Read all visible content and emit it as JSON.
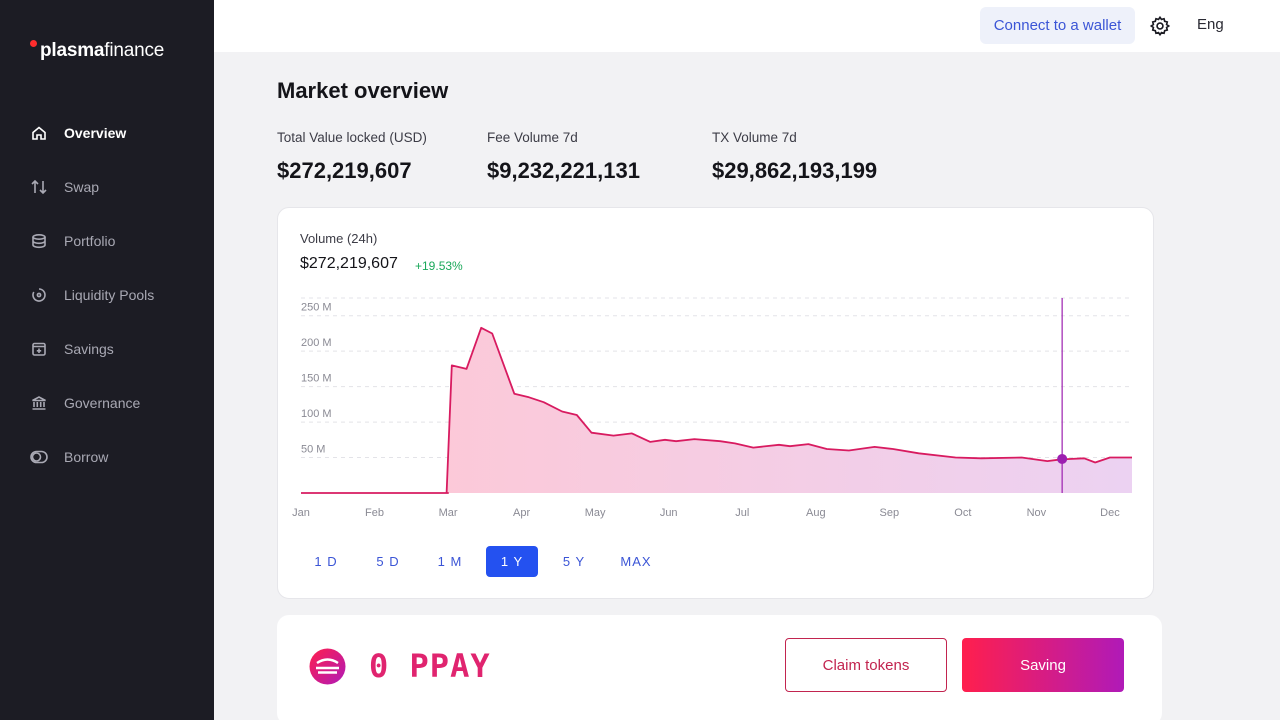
{
  "app": {
    "logo_bold": "plasma",
    "logo_light": "finance"
  },
  "sidebar": {
    "items": [
      {
        "label": "Overview",
        "icon": "home-icon",
        "active": true
      },
      {
        "label": "Swap",
        "icon": "swap-arrows-icon",
        "active": false
      },
      {
        "label": "Portfolio",
        "icon": "database-icon",
        "active": false
      },
      {
        "label": "Liquidity Pools",
        "icon": "pool-icon",
        "active": false
      },
      {
        "label": "Savings",
        "icon": "savings-box-icon",
        "active": false
      },
      {
        "label": "Governance",
        "icon": "bank-icon",
        "active": false
      },
      {
        "label": "Borrow",
        "icon": "toggle-icon",
        "active": false
      }
    ]
  },
  "header": {
    "connect_label": "Connect to a wallet",
    "settings_icon": "gear-icon",
    "language": "Eng"
  },
  "main": {
    "title": "Market overview",
    "stats": [
      {
        "label": "Total Value locked (USD)",
        "value": "$272,219,607"
      },
      {
        "label": "Fee Volume 7d",
        "value": "$9,232,221,131"
      },
      {
        "label": "TX Volume 7d",
        "value": "$29,862,193,199"
      }
    ],
    "chart_card": {
      "label": "Volume (24h)",
      "value": "$272,219,607",
      "change": "+19.53%",
      "ranges": [
        "1 D",
        "5 D",
        "1 M",
        "1 Y",
        "5 Y",
        "MAX"
      ],
      "active_range": "1 Y"
    },
    "token": {
      "amount": "0 PPAY",
      "claim_label": "Claim tokens",
      "saving_label": "Saving"
    }
  },
  "colors": {
    "accent": "#2451f0",
    "line": "#d81b60",
    "positive": "#1aa85a",
    "sidebar_bg": "#1c1c24"
  },
  "chart_data": {
    "type": "area",
    "xlabel": "",
    "ylabel": "",
    "x_ticks": [
      "Jan",
      "Feb",
      "Mar",
      "Apr",
      "May",
      "Jun",
      "Jul",
      "Aug",
      "Sep",
      "Oct",
      "Nov",
      "Dec"
    ],
    "y_ticks": [
      "250 M",
      "200 M",
      "150 M",
      "100 M",
      "50 M"
    ],
    "y_tick_values": [
      250,
      200,
      150,
      100,
      50
    ],
    "ylim": [
      0,
      275
    ],
    "xlim": [
      0,
      11.3
    ],
    "grid": true,
    "series": [
      {
        "x": [
          0,
          1,
          2,
          1.98,
          2.05,
          2.25,
          2.45,
          2.6,
          2.9,
          3.1,
          3.3,
          3.55,
          3.75,
          3.95,
          4.25,
          4.5,
          4.75,
          4.95,
          5.1,
          5.35,
          5.7,
          5.9,
          6.15,
          6.5,
          6.65,
          6.9,
          7.15,
          7.45,
          7.8,
          8.05,
          8.4,
          8.9,
          9.25,
          9.8,
          10.15,
          10.3,
          10.45,
          10.65,
          10.8,
          11.0,
          11.3
        ],
        "values": [
          0,
          0,
          0,
          0,
          180,
          175,
          233,
          225,
          140,
          135,
          128,
          115,
          110,
          85,
          81,
          84,
          72,
          75,
          73,
          76,
          73,
          70,
          64,
          68,
          66,
          69,
          62,
          60,
          65,
          62,
          56,
          50,
          49,
          50,
          45,
          47,
          48,
          49,
          43,
          50,
          50
        ]
      }
    ],
    "annotations": [
      {
        "type": "crosshair",
        "x": 10.35,
        "y": 48
      }
    ]
  }
}
